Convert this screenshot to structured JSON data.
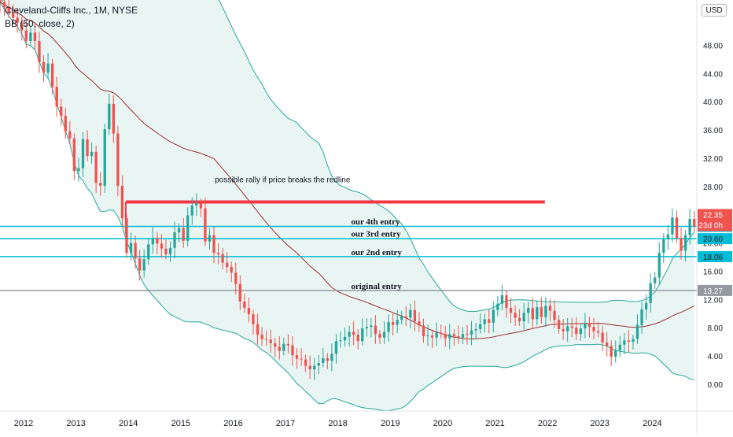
{
  "header": {
    "title": "Cleveland-Cliffs Inc., 1M, NYSE",
    "indicator": "BB (50, close, 2)",
    "currency_button": "USD"
  },
  "colors": {
    "up": "#26a69a",
    "down": "#ef5350",
    "basis": "#9b2c2c",
    "bands": "#26a69a",
    "band_fill": "#e8f5f3",
    "redline": "#f23645",
    "entry_line": "#00bcd4",
    "original_line": "#9598a1",
    "label_bg_entry": "#00bcd4",
    "label_bg_price": "#ef5350",
    "label_bg_original": "#9598a1"
  },
  "chart_data": {
    "type": "candlestick",
    "title": "Cleveland-Cliffs Inc., 1M, NYSE",
    "interval": "1M",
    "x_ticks": [
      "2012",
      "2013",
      "2014",
      "2015",
      "2016",
      "2017",
      "2018",
      "2019",
      "2020",
      "2021",
      "2022",
      "2023",
      "2024"
    ],
    "y_ticks": [
      "0.00",
      "4.00",
      "8.00",
      "12.00",
      "16.00",
      "20.00",
      "24.00",
      "28.00",
      "32.00",
      "36.00",
      "40.00",
      "44.00",
      "48.00"
    ],
    "ylim": [
      -3.8,
      54.4
    ],
    "xlim": [
      2011.55,
      2024.85
    ],
    "grid": false,
    "last_price": "22.35",
    "countdown": "23d 0h",
    "price_labels": [
      {
        "value": 22.35,
        "text": "22.35",
        "style": "entry"
      },
      {
        "value": 20.6,
        "text": "20.60",
        "style": "entry"
      },
      {
        "value": 18.06,
        "text": "18.06",
        "style": "entry"
      },
      {
        "value": 13.27,
        "text": "13.27",
        "style": "original"
      }
    ],
    "horizontal_lines": [
      {
        "name": "redline",
        "value": 25.8,
        "x_start": 2013.95,
        "x_end": 2021.95,
        "label": "possible rally if price breaks the redline"
      },
      {
        "name": "4th-entry",
        "value": 22.35,
        "label": "our 4th entry"
      },
      {
        "name": "3rd-entry",
        "value": 20.6,
        "label": "our 3rd entry"
      },
      {
        "name": "2nd-entry",
        "value": 18.06,
        "label": "our 2nd entry"
      },
      {
        "name": "original-entry",
        "value": 13.27,
        "label": "original entry"
      }
    ],
    "annotations": [
      {
        "text": "possible rally if price breaks the redline",
        "x": 2015.65,
        "y": 28.6
      },
      {
        "text": "our 4th entry",
        "x": 2018.25,
        "y": 22.6
      },
      {
        "text": "our 3rd entry",
        "x": 2018.25,
        "y": 20.9
      },
      {
        "text": "our 2nd entry",
        "x": 2018.25,
        "y": 18.3
      },
      {
        "text": "original entry",
        "x": 2018.25,
        "y": 13.5
      }
    ],
    "candles_close": [
      54.1,
      53.4,
      52.6,
      51.9,
      51.2,
      50.1,
      48.6,
      49.8,
      48.6,
      45.6,
      44.1,
      45.4,
      42.1,
      39.3,
      38.0,
      35.8,
      34.8,
      30.2,
      30.6,
      34.7,
      32.3,
      32.9,
      28.5,
      28.1,
      36.1,
      39.7,
      35.5,
      28.1,
      23.5,
      18.6,
      20.0,
      17.8,
      16.1,
      17.7,
      19.8,
      20.7,
      19.9,
      19.2,
      18.4,
      19.3,
      21.5,
      22.1,
      20.3,
      23.9,
      25.3,
      25.6,
      24.9,
      20.2,
      21.1,
      18.6,
      18.4,
      17.2,
      16.6,
      15.8,
      14.2,
      11.7,
      10.8,
      9.9,
      8.5,
      7.0,
      6.4,
      6.3,
      5.8,
      5.3,
      4.7,
      5.7,
      5.5,
      4.1,
      3.6,
      3.5,
      2.6,
      2.1,
      2.6,
      3.0,
      3.7,
      3.3,
      4.3,
      6.1,
      6.2,
      6.7,
      7.4,
      7.0,
      6.1,
      7.9,
      8.1,
      8.3,
      7.1,
      6.6,
      7.4,
      8.8,
      8.4,
      9.1,
      9.6,
      9.4,
      10.5,
      8.9,
      8.3,
      6.8,
      6.9,
      6.6,
      7.3,
      7.1,
      6.5,
      7.1,
      6.8,
      6.6,
      7.1,
      7.0,
      7.6,
      7.8,
      8.5,
      9.2,
      8.7,
      10.5,
      11.4,
      12.6,
      10.8,
      10.1,
      9.4,
      8.9,
      10.1,
      10.8,
      9.2,
      10.9,
      9.5,
      11.1,
      10.4,
      9.1,
      7.8,
      7.5,
      8.2,
      8.0,
      7.1,
      7.9,
      8.6,
      8.1,
      7.5,
      7.3,
      5.9,
      5.4,
      3.9,
      4.8,
      5.6,
      6.2,
      6.0,
      6.4,
      8.4,
      10.6,
      11.5,
      14.3,
      15.1,
      18.6,
      20.5,
      21.2,
      23.6,
      20.7,
      18.9,
      21.1,
      23.4,
      22.35
    ]
  }
}
